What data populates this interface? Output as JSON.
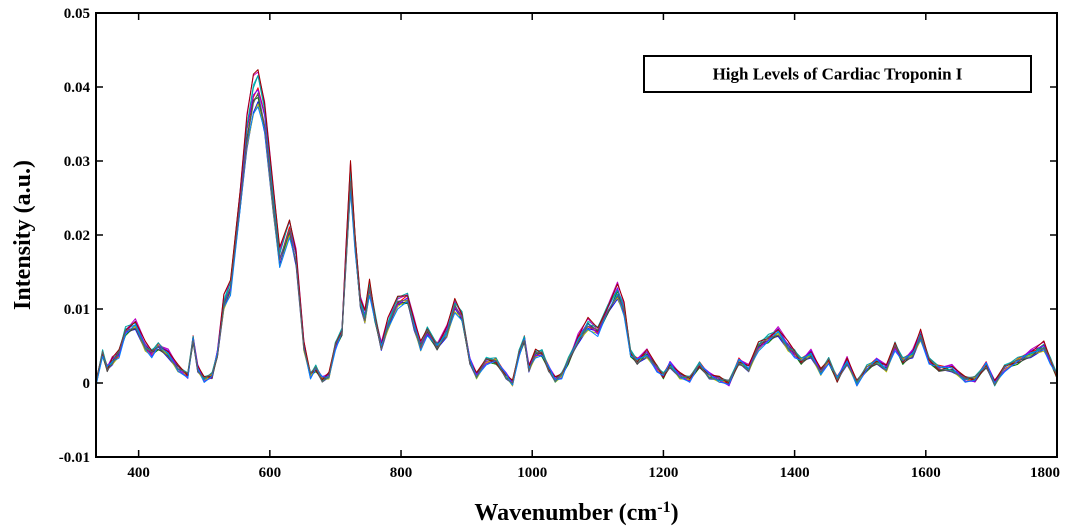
{
  "chart_data": {
    "type": "line",
    "title": "",
    "xlabel": "Wavenumber (cm",
    "xlabel_superscript": "-1",
    "xlabel_close": ")",
    "ylabel": "Intensity (a.u.)",
    "xlim": [
      335,
      1800
    ],
    "ylim": [
      -0.01,
      0.05
    ],
    "grid": false,
    "legend_placement": "top-right",
    "legend_text": "High Levels of Cardiac Troponin I",
    "x_ticks": [
      400,
      600,
      800,
      1000,
      1200,
      1400,
      1600,
      1800
    ],
    "x_tick_labels": [
      "400",
      "600",
      "800",
      "1000",
      "1200",
      "1400",
      "1600",
      "1800"
    ],
    "y_ticks": [
      -0.01,
      0,
      0.01,
      0.02,
      0.03,
      0.04,
      0.05
    ],
    "y_tick_labels": [
      "-0.01",
      "0",
      "0.01",
      "0.02",
      "0.03",
      "0.04",
      "0.05"
    ],
    "series_colors": [
      "#0000ff",
      "#008000",
      "#ff0000",
      "#00bfbf",
      "#bf00bf",
      "#bfbf00",
      "#404040",
      "#7f00ff",
      "#00a0a0",
      "#a00000",
      "#0080ff",
      "#606060"
    ],
    "base_spectrum": {
      "x": [
        335,
        345,
        352,
        360,
        370,
        380,
        395,
        410,
        420,
        430,
        445,
        460,
        475,
        483,
        490,
        500,
        512,
        520,
        530,
        540,
        555,
        565,
        575,
        582,
        592,
        605,
        615,
        630,
        640,
        652,
        662,
        670,
        680,
        690,
        700,
        710,
        716,
        723,
        730,
        738,
        745,
        752,
        760,
        770,
        780,
        795,
        810,
        820,
        830,
        840,
        855,
        870,
        882,
        893,
        905,
        915,
        930,
        945,
        960,
        970,
        980,
        988,
        995,
        1005,
        1015,
        1025,
        1035,
        1045,
        1055,
        1070,
        1085,
        1100,
        1115,
        1130,
        1140,
        1150,
        1160,
        1175,
        1190,
        1200,
        1210,
        1225,
        1240,
        1255,
        1270,
        1285,
        1300,
        1315,
        1330,
        1345,
        1360,
        1375,
        1390,
        1400,
        1410,
        1425,
        1440,
        1452,
        1465,
        1480,
        1495,
        1510,
        1525,
        1540,
        1553,
        1565,
        1580,
        1592,
        1605,
        1620,
        1640,
        1660,
        1675,
        1692,
        1705,
        1720,
        1740,
        1760,
        1780,
        1790,
        1800
      ],
      "y": [
        0.0,
        0.004,
        0.002,
        0.003,
        0.004,
        0.007,
        0.008,
        0.005,
        0.004,
        0.005,
        0.004,
        0.002,
        0.001,
        0.006,
        0.002,
        0.0005,
        0.001,
        0.004,
        0.011,
        0.013,
        0.025,
        0.034,
        0.039,
        0.04,
        0.036,
        0.025,
        0.017,
        0.021,
        0.017,
        0.005,
        0.001,
        0.002,
        0.0005,
        0.001,
        0.005,
        0.007,
        0.017,
        0.028,
        0.019,
        0.011,
        0.009,
        0.013,
        0.009,
        0.005,
        0.008,
        0.011,
        0.0115,
        0.008,
        0.005,
        0.007,
        0.005,
        0.007,
        0.0105,
        0.009,
        0.003,
        0.001,
        0.003,
        0.003,
        0.001,
        0.0,
        0.004,
        0.006,
        0.002,
        0.004,
        0.004,
        0.002,
        0.0005,
        0.001,
        0.003,
        0.006,
        0.008,
        0.007,
        0.01,
        0.0125,
        0.01,
        0.004,
        0.003,
        0.004,
        0.002,
        0.001,
        0.0025,
        0.001,
        0.0005,
        0.0025,
        0.001,
        0.0005,
        0.0,
        0.003,
        0.002,
        0.005,
        0.006,
        0.007,
        0.005,
        0.004,
        0.003,
        0.004,
        0.0015,
        0.003,
        0.0005,
        0.003,
        0.0,
        0.002,
        0.003,
        0.002,
        0.005,
        0.003,
        0.004,
        0.0065,
        0.003,
        0.002,
        0.002,
        0.0005,
        0.0005,
        0.0025,
        0.0,
        0.002,
        0.003,
        0.004,
        0.005,
        0.003,
        0.001
      ]
    }
  }
}
